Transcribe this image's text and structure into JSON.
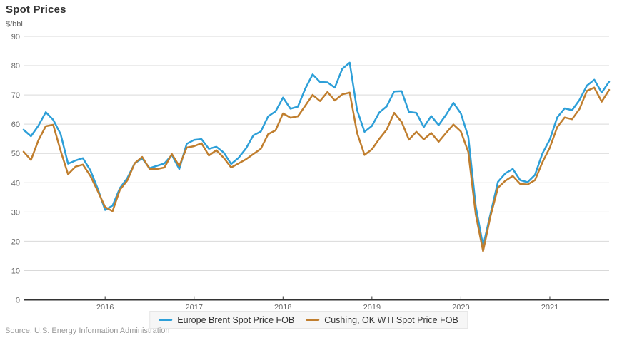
{
  "title": "Spot Prices",
  "unit_label": "$/bbl",
  "source": "Source: U.S. Energy Information Administration",
  "colors": {
    "background": "#ffffff",
    "grid": "#d9d9d9",
    "axis": "#333333",
    "axis_label": "#666666",
    "title_text": "#333333",
    "legend_bg": "#f6f6f6",
    "legend_border": "#e6e6e6",
    "legend_text": "#333333",
    "source_text": "#9a9a9a",
    "brent_blue": "#2d9fd8",
    "wti_orange": "#c07e2e"
  },
  "chart_data": {
    "type": "line",
    "title": "Spot Prices",
    "ylabel": "$/bbl",
    "ylim": [
      0,
      90
    ],
    "y_ticks": [
      0,
      10,
      20,
      30,
      40,
      50,
      60,
      70,
      80,
      90
    ],
    "frequency": "monthly",
    "start_month": "2015-02",
    "end_month": "2021-09",
    "grid": "horizontal",
    "legend_position": "bottom-center",
    "x_ticks": [
      {
        "label": "2016",
        "month_index": 11
      },
      {
        "label": "2017",
        "month_index": 23
      },
      {
        "label": "2018",
        "month_index": 35
      },
      {
        "label": "2019",
        "month_index": 47
      },
      {
        "label": "2020",
        "month_index": 59
      },
      {
        "label": "2021",
        "month_index": 71
      }
    ],
    "series": [
      {
        "name": "Europe Brent Spot Price FOB",
        "color": "#2d9fd8",
        "values": [
          58.1,
          55.9,
          59.5,
          64.1,
          61.5,
          56.6,
          46.5,
          47.6,
          48.4,
          44.3,
          38.0,
          30.7,
          32.2,
          38.2,
          41.6,
          46.7,
          48.3,
          45.0,
          45.8,
          46.6,
          49.5,
          44.7,
          53.3,
          54.6,
          54.9,
          51.6,
          52.3,
          50.3,
          46.4,
          48.5,
          51.7,
          56.2,
          57.5,
          62.7,
          64.4,
          69.1,
          65.3,
          66.0,
          72.1,
          77.0,
          74.4,
          74.3,
          72.5,
          78.9,
          81.0,
          64.8,
          57.4,
          59.4,
          64.0,
          66.1,
          71.2,
          71.3,
          64.2,
          63.9,
          59.0,
          62.8,
          59.7,
          63.2,
          67.3,
          63.7,
          55.7,
          32.0,
          18.4,
          29.4,
          40.3,
          43.2,
          44.7,
          40.9,
          40.2,
          42.7,
          50.0,
          54.8,
          62.3,
          65.4,
          64.8,
          68.3,
          73.2,
          75.2,
          70.8,
          74.5
        ]
      },
      {
        "name": "Cushing, OK WTI Spot Price FOB",
        "color": "#c07e2e",
        "values": [
          50.6,
          47.8,
          54.5,
          59.3,
          59.8,
          50.9,
          42.9,
          45.5,
          46.2,
          42.4,
          37.2,
          31.7,
          30.3,
          37.6,
          40.8,
          46.7,
          48.8,
          44.7,
          44.7,
          45.2,
          49.8,
          45.7,
          52.0,
          52.5,
          53.5,
          49.3,
          51.1,
          48.5,
          45.2,
          46.6,
          48.0,
          49.8,
          51.6,
          56.6,
          57.9,
          63.7,
          62.2,
          62.7,
          66.3,
          70.0,
          67.9,
          71.0,
          68.1,
          70.2,
          70.8,
          57.0,
          49.5,
          51.4,
          55.0,
          58.2,
          63.9,
          60.8,
          54.7,
          57.4,
          54.8,
          57.0,
          54.0,
          57.0,
          59.9,
          57.5,
          50.5,
          29.2,
          16.6,
          28.6,
          38.3,
          40.7,
          42.3,
          39.6,
          39.4,
          40.9,
          47.0,
          52.0,
          59.0,
          62.3,
          61.7,
          65.2,
          71.4,
          72.5,
          67.7,
          71.7
        ]
      }
    ]
  }
}
